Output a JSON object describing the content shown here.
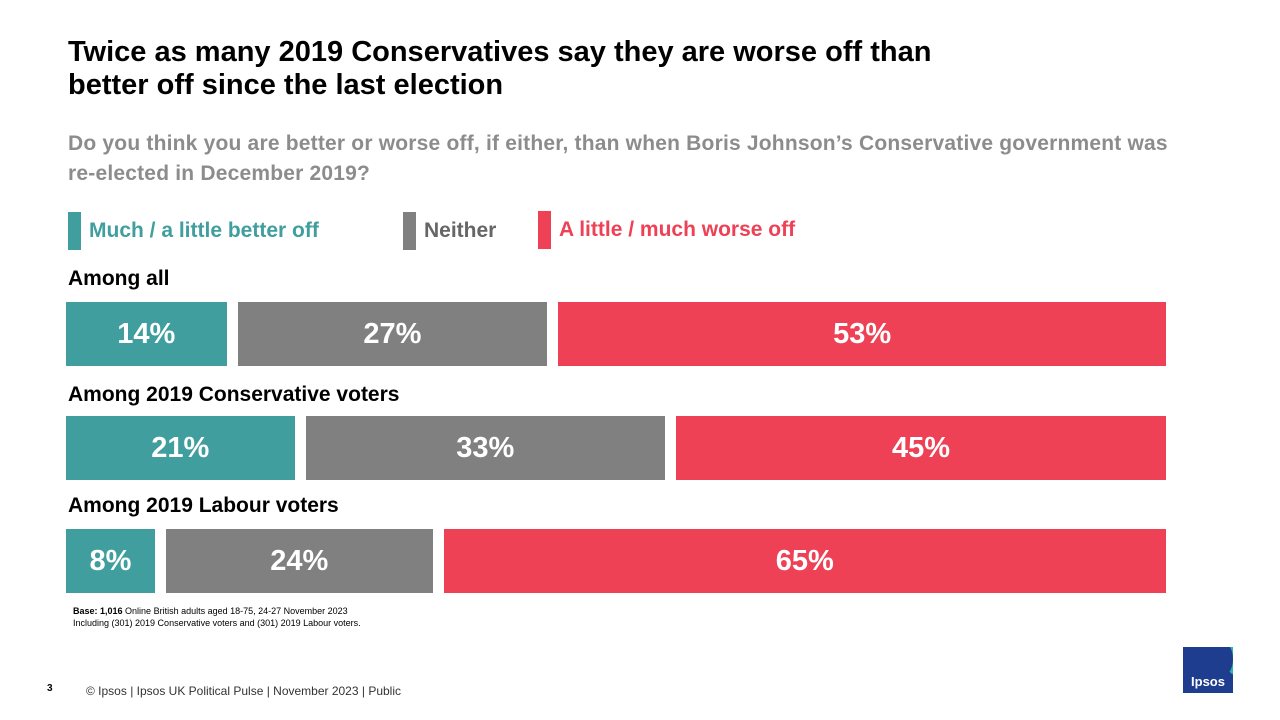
{
  "title": "Twice as many 2019 Conservatives say they are worse off than better off since the last election",
  "subtitle": "Do you think you are better or worse off, if either, than when Boris Johnson’s Conservative government was re-elected in December 2019?",
  "legend": [
    {
      "label": "Much / a little better off",
      "color": "#419e9f"
    },
    {
      "label": "Neither",
      "color": "#808080"
    },
    {
      "label": "A little / much worse off",
      "color": "#ef4156"
    }
  ],
  "chart_data": {
    "type": "bar",
    "orientation": "horizontal-stacked",
    "categories": [
      "Among all",
      "Among 2019 Conservative voters",
      "Among 2019 Labour voters"
    ],
    "series": [
      {
        "name": "Much / a little better off",
        "values": [
          14,
          21,
          8
        ],
        "labels": [
          "14%",
          "21%",
          "8%"
        ]
      },
      {
        "name": "Neither",
        "values": [
          27,
          33,
          24
        ],
        "labels": [
          "27%",
          "33%",
          "24%"
        ]
      },
      {
        "name": "A little / much worse off",
        "values": [
          53,
          45,
          65
        ],
        "labels": [
          "53%",
          "45%",
          "65%"
        ]
      }
    ],
    "unit": "%"
  },
  "base": {
    "bold": "Base: 1,016",
    "line1": " Online British adults aged 18-75, 24-27 November 2023",
    "line2": "Including  (301) 2019 Conservative voters and (301) 2019 Labour voters."
  },
  "page_number": "3",
  "footer": "© Ipsos  |  Ipsos UK Political Pulse | November  2023 | Public",
  "logo_text": "Ipsos"
}
